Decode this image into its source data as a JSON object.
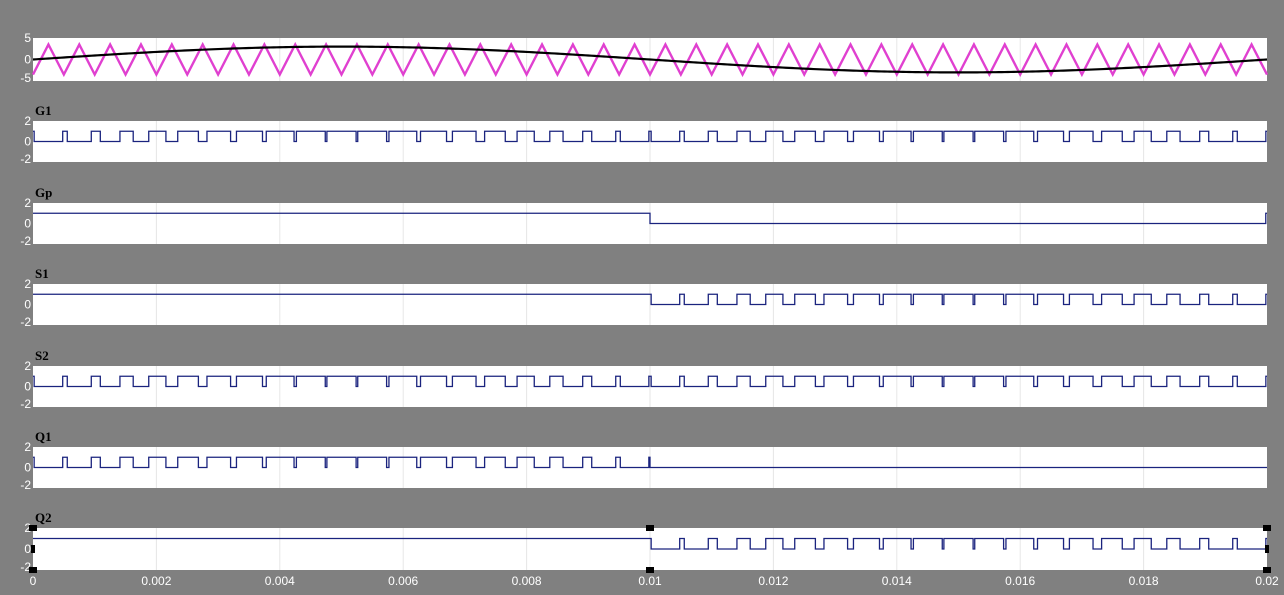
{
  "chart_data": {
    "type": "line",
    "x_range": [
      0,
      0.02
    ],
    "x_ticks": [
      "0",
      "0.002",
      "0.004",
      "0.006",
      "0.008",
      "0.01",
      "0.012",
      "0.014",
      "0.016",
      "0.018",
      "0.02"
    ],
    "carrier_frequency_hz": 2000,
    "reference_frequency_hz": 50,
    "colors": {
      "background": "#808080",
      "plot_bg": "#ffffff",
      "grid": "#e6e6e6",
      "signal": "#1a237e",
      "carrier": "#e040d0",
      "reference": "#000000",
      "tick_text": "#ffffff",
      "title_text": "#000000"
    },
    "panels": [
      {
        "title": "",
        "ylim": [
          -5,
          5
        ],
        "y_ticks": [
          "5",
          "0",
          "-5"
        ],
        "series": [
          {
            "kind": "carrier",
            "amplitude": 3.5,
            "color": "#e040d0"
          },
          {
            "kind": "reference",
            "amplitude": 3,
            "color": "#000000"
          }
        ]
      },
      {
        "title": "G1",
        "ylim": [
          -2,
          2
        ],
        "y_ticks": [
          "2",
          "0",
          "-2"
        ],
        "signal": "G1",
        "high": 1,
        "low": 0
      },
      {
        "title": "Gp",
        "ylim": [
          -2,
          2
        ],
        "y_ticks": [
          "2",
          "0",
          "-2"
        ],
        "signal": "Gp",
        "high": 1,
        "low": 0
      },
      {
        "title": "S1",
        "ylim": [
          -2,
          2
        ],
        "y_ticks": [
          "2",
          "0",
          "-2"
        ],
        "signal": "S1",
        "high": 1,
        "low": 0
      },
      {
        "title": "S2",
        "ylim": [
          -2,
          2
        ],
        "y_ticks": [
          "2",
          "0",
          "-2"
        ],
        "signal": "S2",
        "high": 1,
        "low": 0
      },
      {
        "title": "Q1",
        "ylim": [
          -2,
          2
        ],
        "y_ticks": [
          "2",
          "0",
          "-2"
        ],
        "signal": "Q1",
        "high": 1,
        "low": 0
      },
      {
        "title": "Q2",
        "ylim": [
          -2,
          2
        ],
        "y_ticks": [
          "2",
          "0",
          "-2"
        ],
        "signal": "Q2",
        "high": 1,
        "low": 0
      }
    ]
  }
}
